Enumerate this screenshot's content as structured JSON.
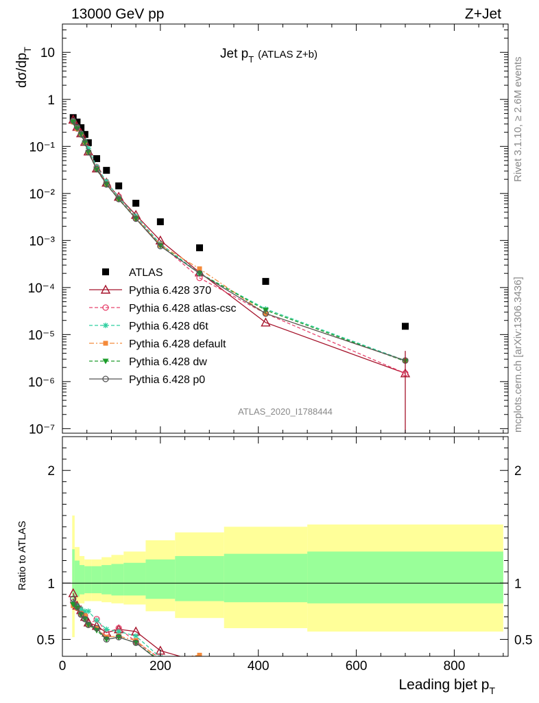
{
  "header": {
    "left": "13000 GeV pp",
    "right": "Z+Jet"
  },
  "plot_title": {
    "main": "Jet p",
    "sub": "T",
    "extra": "(ATLAS Z+b)"
  },
  "watermark": "ATLAS_2020_I1788444",
  "side_labels": {
    "rivet": "Rivet 3.1.10, ≥ 2.6M events",
    "mcplots": "mcplots.cern.ch [arXiv:1306.3436]"
  },
  "y_label_main": {
    "text": "dσ/dp",
    "sub": "T"
  },
  "y_label_ratio": "Ratio to ATLAS",
  "x_label": {
    "text": "Leading bjet p",
    "sub": "T"
  },
  "colors": {
    "data": "#000000",
    "p370": "#a5122a",
    "atlascsc": "#e8436d",
    "d6t": "#2fcfa0",
    "default": "#f48a3a",
    "dw": "#1c9c2a",
    "p0": "#555555",
    "band_inner": "#99ff99",
    "band_outer": "#ffff99"
  },
  "chart_data": [
    {
      "type": "scatter",
      "panel": "main",
      "yscale": "log",
      "xlim": [
        0,
        910
      ],
      "ylim": [
        8e-08,
        40
      ],
      "x_ticks": [
        0,
        200,
        400,
        600,
        800
      ],
      "y_tick_labels": [
        "10⁻⁷",
        "10⁻⁶",
        "10⁻⁵",
        "10⁻⁴",
        "10⁻³",
        "10⁻²",
        "10⁻¹",
        "1",
        "10"
      ],
      "y_tick_values": [
        1e-07,
        1e-06,
        1e-05,
        0.0001,
        0.001,
        0.01,
        0.1,
        1,
        10
      ],
      "legend_placement": "lower-left",
      "x": [
        22,
        30,
        38,
        46,
        53,
        70,
        90,
        115,
        150,
        200,
        280,
        415,
        700
      ],
      "series": [
        {
          "name": "ATLAS",
          "key": "data",
          "marker": "square",
          "values": [
            0.41,
            0.33,
            0.25,
            0.18,
            0.12,
            0.055,
            0.031,
            0.0145,
            0.0062,
            0.0025,
            0.0007,
            0.000135,
            1.5e-05
          ]
        },
        {
          "name": "Pythia 6.428 370",
          "key": "p370",
          "marker": "triangle",
          "line": "solid",
          "values": [
            0.37,
            0.26,
            0.19,
            0.125,
            0.078,
            0.034,
            0.017,
            0.0085,
            0.0035,
            0.001,
            0.00021,
            1.8e-05,
            1.5e-06
          ]
        },
        {
          "name": "Pythia 6.428 atlas-csc",
          "key": "atlascsc",
          "marker": "circle-open",
          "line": "dashed",
          "values": [
            0.34,
            0.24,
            0.18,
            0.12,
            0.075,
            0.036,
            0.017,
            0.0086,
            0.003,
            0.00082,
            0.00016,
            2.8e-05,
            1.5e-06
          ]
        },
        {
          "name": "Pythia 6.428 d6t",
          "key": "d6t",
          "marker": "star",
          "line": "dashed",
          "values": [
            0.34,
            0.25,
            0.19,
            0.13,
            0.09,
            0.037,
            0.018,
            0.0082,
            0.0033,
            0.00085,
            0.0002,
            3.5e-05,
            2.8e-06
          ]
        },
        {
          "name": "Pythia 6.428 default",
          "key": "default",
          "marker": "square-filled",
          "line": "dashdot",
          "values": [
            0.33,
            0.24,
            0.18,
            0.12,
            0.075,
            0.033,
            0.016,
            0.0077,
            0.003,
            0.0008,
            0.00025,
            2.8e-05,
            2.8e-06
          ]
        },
        {
          "name": "Pythia 6.428 dw",
          "key": "dw",
          "marker": "triangle-down",
          "line": "dashed",
          "values": [
            0.33,
            0.24,
            0.18,
            0.12,
            0.075,
            0.032,
            0.0155,
            0.0075,
            0.0029,
            0.00078,
            0.0002,
            3.3e-05,
            2.7e-06
          ]
        },
        {
          "name": "Pythia 6.428 p0",
          "key": "p0",
          "marker": "circle-open",
          "line": "solid",
          "values": [
            0.35,
            0.26,
            0.18,
            0.12,
            0.075,
            0.033,
            0.0155,
            0.0076,
            0.0029,
            0.00076,
            0.0002,
            2.8e-05,
            2.8e-06
          ]
        }
      ]
    },
    {
      "type": "line",
      "panel": "ratio",
      "xlabel": "Leading bjet p_T",
      "ylabel": "Ratio to ATLAS",
      "xlim": [
        0,
        910
      ],
      "ylim": [
        0.35,
        2.3
      ],
      "x_ticks": [
        0,
        200,
        400,
        600,
        800
      ],
      "y_ticks": [
        0.5,
        1,
        2
      ],
      "bands": {
        "edges": [
          20,
          25,
          35,
          45,
          60,
          80,
          100,
          125,
          170,
          230,
          330,
          500,
          900
        ],
        "inner_upper": [
          1.3,
          1.2,
          1.16,
          1.15,
          1.15,
          1.16,
          1.17,
          1.18,
          1.21,
          1.24,
          1.26,
          1.28
        ],
        "inner_lower": [
          0.85,
          0.88,
          0.9,
          0.91,
          0.91,
          0.9,
          0.89,
          0.89,
          0.86,
          0.84,
          0.83,
          0.82
        ],
        "outer_upper": [
          1.6,
          1.32,
          1.24,
          1.21,
          1.21,
          1.23,
          1.25,
          1.28,
          1.38,
          1.45,
          1.5,
          1.52
        ],
        "outer_lower": [
          0.52,
          0.76,
          0.82,
          0.84,
          0.84,
          0.83,
          0.82,
          0.81,
          0.75,
          0.69,
          0.6,
          0.57
        ]
      },
      "x": [
        22,
        30,
        38,
        46,
        53,
        70,
        90,
        115,
        150,
        200,
        280
      ],
      "series": [
        {
          "name": "Pythia 6.428 370",
          "key": "p370",
          "values": [
            0.91,
            0.8,
            0.76,
            0.7,
            0.65,
            0.62,
            0.56,
            0.59,
            0.57,
            0.4,
            0.3
          ]
        },
        {
          "name": "Pythia 6.428 atlas-csc",
          "key": "atlascsc",
          "values": [
            0.83,
            0.78,
            0.73,
            0.71,
            0.63,
            0.68,
            0.56,
            0.6,
            0.48,
            0.33,
            0.23
          ]
        },
        {
          "name": "Pythia 6.428 d6t",
          "key": "d6t",
          "values": [
            0.83,
            0.8,
            0.77,
            0.75,
            0.75,
            0.67,
            0.59,
            0.57,
            0.53,
            0.34,
            0.29
          ]
        },
        {
          "name": "Pythia 6.428 default",
          "key": "default",
          "values": [
            0.8,
            0.78,
            0.73,
            0.71,
            0.63,
            0.6,
            0.52,
            0.53,
            0.49,
            0.32,
            0.36
          ]
        },
        {
          "name": "Pythia 6.428 dw",
          "key": "dw",
          "values": [
            0.81,
            0.78,
            0.72,
            0.68,
            0.63,
            0.58,
            0.5,
            0.52,
            0.47,
            0.31,
            0.29
          ]
        },
        {
          "name": "Pythia 6.428 p0",
          "key": "p0",
          "values": [
            0.86,
            0.79,
            0.72,
            0.68,
            0.63,
            0.6,
            0.5,
            0.52,
            0.47,
            0.3,
            0.29
          ]
        }
      ]
    }
  ]
}
